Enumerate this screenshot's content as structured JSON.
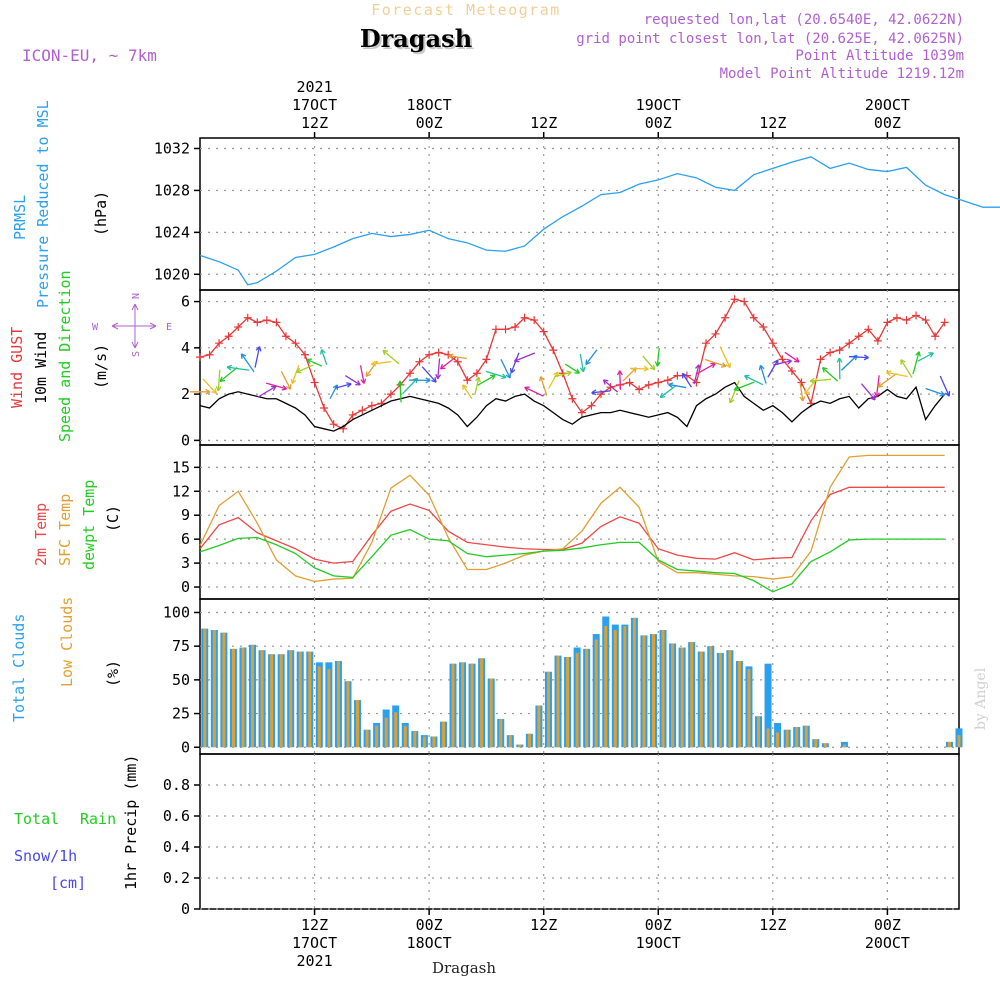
{
  "header": {
    "subtitle": "Forecast Meteogram",
    "location": "Dragash",
    "model": "ICON-EU, ~ 7km",
    "requested": "requested lon,lat (20.6540E, 42.0622N)",
    "grid_point": "grid point closest lon,lat (20.625E, 42.0625N)",
    "point_alt": "Point Altitude 1039m",
    "model_alt": "Model Point Altitude 1219.12m",
    "footer": "Dragash",
    "credit": "by Angel"
  },
  "time_axis": {
    "year": "2021",
    "ticks": [
      {
        "t": 12,
        "lines": [
          "12Z",
          "17OCT",
          "2021"
        ]
      },
      {
        "t": 24,
        "lines": [
          "00Z",
          "18OCT"
        ]
      },
      {
        "t": 36,
        "lines": [
          "12Z"
        ]
      },
      {
        "t": 48,
        "lines": [
          "00Z",
          "19OCT"
        ]
      },
      {
        "t": 60,
        "lines": [
          "12Z"
        ]
      },
      {
        "t": 72,
        "lines": [
          "00Z",
          "20OCT"
        ]
      }
    ],
    "top_ticks": [
      {
        "t": 12,
        "lines": [
          "2021",
          "17OCT",
          "12Z"
        ]
      },
      {
        "t": 24,
        "lines": [
          "18OCT",
          "00Z"
        ]
      },
      {
        "t": 36,
        "lines": [
          "12Z"
        ]
      },
      {
        "t": 48,
        "lines": [
          "19OCT",
          "00Z"
        ]
      },
      {
        "t": 60,
        "lines": [
          "12Z"
        ]
      },
      {
        "t": 72,
        "lines": [
          "20OCT",
          "00Z"
        ]
      }
    ]
  },
  "panels": {
    "pressure": {
      "label1": "PRMSL",
      "label2": "Pressure Reduced to MSL",
      "unit": "(hPa)"
    },
    "wind": {
      "label_gust": "Wind GUST",
      "label_10m": "10m Wind",
      "label_dir": "Speed and Direction",
      "unit": "(m/s)",
      "compass_n": "N",
      "compass_s": "S",
      "compass_w": "W",
      "compass_e": "E"
    },
    "temp": {
      "label_t2m": "2m Temp",
      "label_sfc": "SFC Temp",
      "label_dew": "dewpt Temp",
      "unit": "(C)"
    },
    "cloud": {
      "label_total": "Total Clouds",
      "label_low": "Low Clouds",
      "unit": "(%)"
    },
    "precip": {
      "label_rain1": "Total",
      "label_rain2": "Rain",
      "label_snow": "Snow/1h",
      "label_cm": "[cm]",
      "unit": "1hr Precip (mm)"
    }
  },
  "chart_data": [
    {
      "type": "line",
      "id": "pressure",
      "title": "PRMSL Pressure Reduced to MSL",
      "ylabel": "(hPa)",
      "ylim": [
        1018.5,
        1033
      ],
      "yticks": [
        1020,
        1024,
        1028,
        1032
      ],
      "color": "#2aa0f0",
      "x": [
        0,
        2,
        4,
        5,
        6,
        8,
        10,
        12,
        14,
        16,
        18,
        20,
        22,
        24,
        26,
        28,
        30,
        32,
        34,
        36,
        38,
        40,
        42,
        44,
        46,
        48,
        50,
        52,
        54,
        56,
        58,
        60,
        62,
        64,
        66,
        68,
        70,
        72,
        74,
        76,
        78,
        80,
        82,
        84,
        86
      ],
      "values": [
        1021.8,
        1021.2,
        1020.4,
        1019.0,
        1019.2,
        1020.3,
        1021.6,
        1021.9,
        1022.6,
        1023.4,
        1023.9,
        1023.6,
        1023.8,
        1024.2,
        1023.4,
        1023.0,
        1022.3,
        1022.2,
        1022.7,
        1024.3,
        1025.5,
        1026.5,
        1027.6,
        1027.8,
        1028.6,
        1029.0,
        1029.6,
        1029.2,
        1028.3,
        1028.0,
        1029.5,
        1030.1,
        1030.7,
        1031.2,
        1030.1,
        1030.6,
        1030.0,
        1029.8,
        1030.2,
        1028.5,
        1027.6,
        1027.0,
        1026.4,
        1026.4,
        1026.4
      ]
    },
    {
      "type": "line",
      "id": "wind",
      "title": "Wind GUST / 10m Wind",
      "ylabel": "(m/s)",
      "ylim": [
        -0.2,
        6.5
      ],
      "yticks": [
        0,
        2,
        4,
        6
      ],
      "series": [
        {
          "name": "Wind GUST",
          "color": "#e83838",
          "markers": true,
          "x": [
            0,
            1,
            2,
            3,
            4,
            5,
            6,
            7,
            8,
            9,
            10,
            11,
            12,
            13,
            14,
            15,
            16,
            17,
            18,
            19,
            20,
            21,
            22,
            23,
            24,
            25,
            26,
            27,
            28,
            29,
            30,
            31,
            32,
            33,
            34,
            35,
            36,
            37,
            38,
            39,
            40,
            41,
            42,
            43,
            44,
            45,
            46,
            47,
            48,
            49,
            50,
            51,
            52,
            53,
            54,
            55,
            56,
            57,
            58,
            59,
            60,
            61,
            62,
            63,
            64,
            65,
            66,
            67,
            68,
            69,
            70,
            71,
            72,
            73,
            74,
            75,
            76,
            77,
            78
          ],
          "values": [
            3.6,
            3.7,
            4.2,
            4.5,
            4.9,
            5.3,
            5.1,
            5.2,
            5.1,
            4.5,
            4.2,
            3.7,
            2.5,
            1.4,
            0.7,
            0.5,
            1.1,
            1.3,
            1.5,
            1.6,
            2.0,
            2.4,
            2.9,
            3.4,
            3.7,
            3.8,
            3.7,
            3.4,
            2.6,
            2.9,
            3.5,
            4.8,
            4.8,
            4.9,
            5.3,
            5.2,
            4.7,
            3.9,
            2.9,
            1.8,
            1.2,
            1.5,
            2.0,
            2.3,
            2.4,
            2.5,
            2.2,
            2.4,
            2.5,
            2.6,
            2.8,
            2.8,
            2.5,
            4.2,
            4.6,
            5.3,
            6.1,
            6.0,
            5.3,
            4.9,
            4.2,
            3.5,
            3.0,
            2.5,
            1.6,
            3.5,
            3.8,
            3.9,
            4.2,
            4.5,
            4.8,
            4.3,
            5.1,
            5.3,
            5.2,
            5.4,
            5.2,
            4.5,
            5.1
          ]
        },
        {
          "name": "10m Wind",
          "color": "#000000",
          "markers": false,
          "x": [
            0,
            1,
            2,
            3,
            4,
            5,
            6,
            7,
            8,
            9,
            10,
            11,
            12,
            13,
            14,
            15,
            16,
            17,
            18,
            19,
            20,
            21,
            22,
            23,
            24,
            25,
            26,
            27,
            28,
            29,
            30,
            31,
            32,
            33,
            34,
            35,
            36,
            37,
            38,
            39,
            40,
            41,
            42,
            43,
            44,
            45,
            46,
            47,
            48,
            49,
            50,
            51,
            52,
            53,
            54,
            55,
            56,
            57,
            58,
            59,
            60,
            61,
            62,
            63,
            64,
            65,
            66,
            67,
            68,
            69,
            70,
            71,
            72,
            73,
            74,
            75,
            76,
            77,
            78
          ],
          "values": [
            1.5,
            1.4,
            1.8,
            2.0,
            2.1,
            2.0,
            1.9,
            1.8,
            1.8,
            1.6,
            1.4,
            1.1,
            0.6,
            0.5,
            0.4,
            0.6,
            0.9,
            1.1,
            1.3,
            1.5,
            1.7,
            1.8,
            1.9,
            1.8,
            1.7,
            1.6,
            1.4,
            1.1,
            0.6,
            1.0,
            1.5,
            1.8,
            1.7,
            1.9,
            2.0,
            1.7,
            1.5,
            1.2,
            0.9,
            0.7,
            1.0,
            1.1,
            1.2,
            1.2,
            1.3,
            1.2,
            1.1,
            1.0,
            1.1,
            1.2,
            1.0,
            0.6,
            1.5,
            1.8,
            2.0,
            2.3,
            2.5,
            1.9,
            1.6,
            1.3,
            1.5,
            1.2,
            0.8,
            1.2,
            1.5,
            1.7,
            1.6,
            1.8,
            1.9,
            1.4,
            1.8,
            1.9,
            2.2,
            1.9,
            1.8,
            2.3,
            0.9,
            1.5,
            2.0
          ]
        }
      ]
    },
    {
      "type": "line",
      "id": "temp",
      "title": "2m / SFC / dewpoint Temp",
      "ylabel": "(C)",
      "ylim": [
        -1.5,
        17.8
      ],
      "yticks": [
        0,
        3,
        6,
        9,
        12,
        15
      ],
      "series": [
        {
          "name": "2m Temp",
          "color": "#ee4848",
          "x": [
            0,
            2,
            4,
            6,
            8,
            10,
            12,
            14,
            16,
            18,
            20,
            22,
            24,
            26,
            28,
            30,
            32,
            34,
            36,
            38,
            40,
            42,
            44,
            46,
            48,
            50,
            52,
            54,
            56,
            58,
            60,
            62,
            64,
            66,
            68,
            70,
            72,
            74,
            76,
            78
          ],
          "values": [
            4.8,
            7.8,
            8.7,
            6.8,
            5.8,
            4.8,
            3.5,
            3.0,
            3.2,
            6.5,
            9.5,
            10.4,
            9.6,
            7.0,
            5.6,
            5.3,
            5.0,
            4.8,
            4.7,
            4.7,
            5.5,
            7.6,
            8.8,
            8.0,
            4.8,
            4.0,
            3.6,
            3.5,
            4.3,
            3.4,
            3.6,
            3.7,
            8.3,
            11.6,
            12.5,
            12.5,
            12.5,
            12.5,
            12.5,
            12.5
          ]
        },
        {
          "name": "SFC Temp",
          "color": "#e0a030",
          "x": [
            0,
            2,
            4,
            6,
            8,
            10,
            12,
            14,
            16,
            18,
            20,
            22,
            24,
            26,
            28,
            30,
            32,
            34,
            36,
            38,
            40,
            42,
            44,
            46,
            48,
            50,
            52,
            54,
            56,
            58,
            60,
            62,
            64,
            66,
            68,
            70,
            72,
            74,
            76,
            78
          ],
          "values": [
            5.2,
            10.2,
            12.0,
            8.0,
            3.4,
            1.4,
            0.7,
            1.0,
            1.1,
            5.6,
            12.4,
            14.0,
            11.5,
            6.2,
            2.2,
            2.2,
            3.0,
            4.0,
            4.5,
            4.8,
            7.0,
            10.5,
            12.5,
            10.0,
            3.2,
            1.8,
            1.8,
            1.6,
            1.4,
            1.3,
            1.0,
            1.3,
            4.5,
            12.5,
            16.3,
            16.5,
            16.5,
            16.5,
            16.5,
            16.5
          ]
        },
        {
          "name": "dewpt Temp",
          "color": "#22cc22",
          "x": [
            0,
            2,
            4,
            6,
            8,
            10,
            12,
            14,
            16,
            18,
            20,
            22,
            24,
            26,
            28,
            30,
            32,
            34,
            36,
            38,
            40,
            42,
            44,
            46,
            48,
            50,
            52,
            54,
            56,
            58,
            60,
            62,
            64,
            66,
            68,
            70,
            72,
            74,
            76,
            78
          ],
          "values": [
            4.4,
            5.2,
            6.1,
            6.2,
            5.3,
            4.2,
            2.4,
            1.4,
            1.2,
            3.8,
            6.5,
            7.2,
            6.0,
            5.8,
            4.2,
            3.8,
            4.0,
            4.2,
            4.5,
            4.6,
            4.9,
            5.3,
            5.6,
            5.6,
            3.4,
            2.2,
            2.0,
            1.8,
            1.7,
            0.8,
            -0.6,
            0.4,
            3.2,
            4.4,
            5.9,
            6.0,
            6.0,
            6.0,
            6.0,
            6.0
          ]
        }
      ]
    },
    {
      "type": "bar",
      "id": "cloud",
      "title": "Total / Low Clouds",
      "ylabel": "(%)",
      "ylim": [
        -5,
        110
      ],
      "yticks": [
        0,
        25,
        50,
        75,
        100
      ],
      "categories": [
        0,
        1,
        2,
        3,
        4,
        5,
        6,
        7,
        8,
        9,
        10,
        11,
        12,
        13,
        14,
        15,
        16,
        17,
        18,
        19,
        20,
        21,
        22,
        23,
        24,
        25,
        26,
        27,
        28,
        29,
        30,
        31,
        32,
        33,
        34,
        35,
        36,
        37,
        38,
        39,
        40,
        41,
        42,
        43,
        44,
        45,
        46,
        47,
        48,
        49,
        50,
        51,
        52,
        53,
        54,
        55,
        56,
        57,
        58,
        59,
        60,
        61,
        62,
        63,
        64,
        65,
        66,
        67,
        68,
        69,
        70,
        71,
        72,
        73,
        74,
        75,
        76,
        77,
        78,
        79
      ],
      "series": [
        {
          "name": "Total Clouds",
          "color": "#2aa0f0",
          "values": [
            88,
            87,
            85,
            73,
            74,
            76,
            72,
            69,
            69,
            72,
            71,
            71,
            63,
            63,
            64,
            49,
            35,
            13,
            18,
            28,
            31,
            18,
            12,
            9,
            8,
            19,
            62,
            63,
            62,
            66,
            51,
            21,
            9,
            2,
            10,
            31,
            56,
            68,
            67,
            74,
            73,
            84,
            97,
            91,
            91,
            96,
            83,
            84,
            87,
            77,
            74,
            78,
            71,
            75,
            70,
            72,
            64,
            60,
            23,
            62,
            18,
            13,
            15,
            16,
            6,
            3,
            0,
            4,
            0,
            0,
            0,
            0,
            0,
            0,
            0,
            0,
            0,
            0,
            4,
            14
          ]
        },
        {
          "name": "Low Clouds",
          "color": "#e0a030",
          "values": [
            88,
            87,
            85,
            73,
            74,
            76,
            72,
            69,
            69,
            72,
            71,
            71,
            60,
            58,
            64,
            49,
            35,
            13,
            16,
            22,
            26,
            16,
            12,
            8,
            8,
            19,
            62,
            63,
            62,
            66,
            51,
            21,
            9,
            2,
            10,
            31,
            56,
            68,
            67,
            70,
            73,
            80,
            90,
            87,
            90,
            96,
            83,
            84,
            87,
            77,
            74,
            78,
            71,
            75,
            70,
            72,
            64,
            58,
            23,
            14,
            11,
            13,
            15,
            16,
            6,
            3,
            0,
            2,
            0,
            0,
            0,
            0,
            0,
            0,
            0,
            0,
            0,
            0,
            4,
            9
          ]
        }
      ]
    },
    {
      "type": "bar",
      "id": "precip",
      "title": "1hr Precip",
      "ylabel": "1hr Precip (mm)",
      "ylim": [
        0,
        1
      ],
      "yticks": [
        0,
        0.2,
        0.4,
        0.6,
        0.8
      ],
      "series": [
        {
          "name": "Total Rain",
          "color": "#22cc22",
          "values": []
        },
        {
          "name": "Snow/1h",
          "color": "#4848f0",
          "values": []
        }
      ]
    }
  ]
}
